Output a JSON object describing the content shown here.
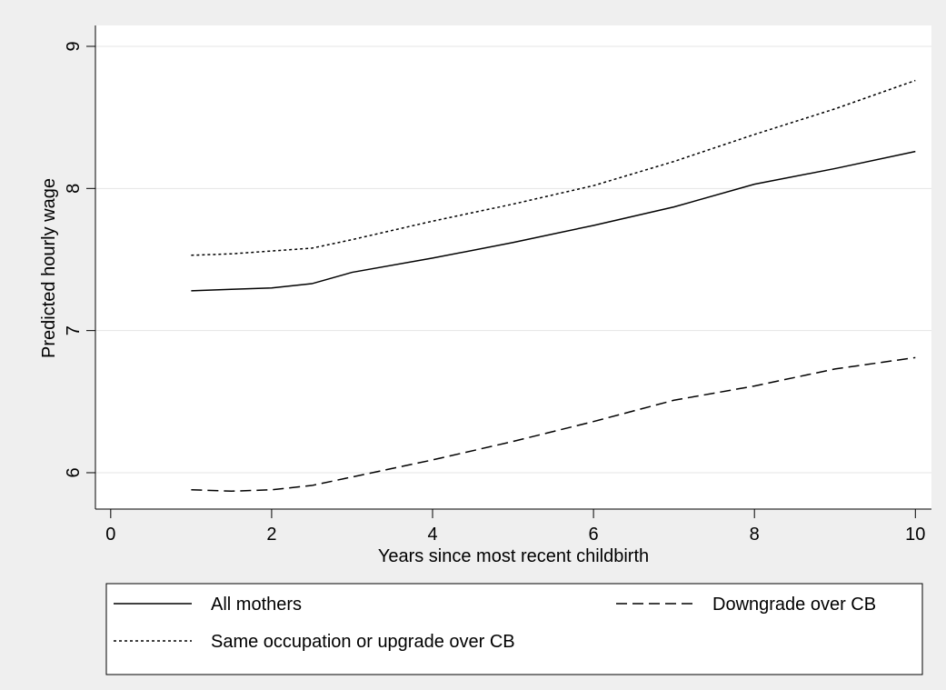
{
  "chart_data": {
    "type": "line",
    "x_label": "Years since most recent childbirth",
    "y_label": "Predicted hourly wage",
    "x": [
      1,
      1.5,
      2,
      2.5,
      3,
      4,
      5,
      6,
      7,
      8,
      9,
      10
    ],
    "series": [
      {
        "name": "All mothers",
        "color": "#000000",
        "style": "solid",
        "values": [
          7.28,
          7.29,
          7.3,
          7.33,
          7.41,
          7.51,
          7.62,
          7.74,
          7.87,
          8.03,
          8.14,
          8.26
        ]
      },
      {
        "name": "Downgrade over CB",
        "color": "#000000",
        "style": "dashed",
        "values": [
          5.88,
          5.87,
          5.88,
          5.91,
          5.97,
          6.09,
          6.22,
          6.36,
          6.51,
          6.61,
          6.73,
          6.81
        ]
      },
      {
        "name": "Same occupation or upgrade over CB",
        "color": "#000000",
        "style": "dotted",
        "values": [
          7.53,
          7.54,
          7.56,
          7.58,
          7.64,
          7.77,
          7.89,
          8.02,
          8.19,
          8.38,
          8.56,
          8.76
        ]
      }
    ],
    "xlim": [
      -0.19,
      10.2
    ],
    "xticks": [
      0,
      2,
      4,
      6,
      8,
      10
    ],
    "ylim": [
      5.744,
      9.147
    ],
    "yticks": [
      6,
      7,
      8,
      9
    ],
    "grid": true,
    "legend": "bottom"
  }
}
